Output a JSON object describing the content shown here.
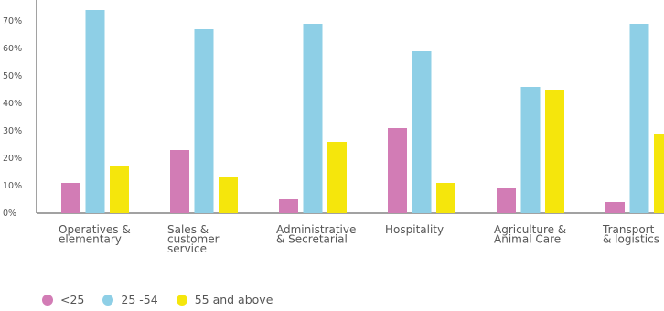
{
  "chart_data": {
    "type": "bar",
    "categories": [
      [
        "Operatives &",
        "elementary"
      ],
      [
        "Sales &",
        "customer",
        "service"
      ],
      [
        "Administrative",
        "& Secretarial"
      ],
      [
        "Hospitality"
      ],
      [
        "Agriculture &",
        "Animal Care"
      ],
      [
        "Transport",
        "& logistics"
      ]
    ],
    "series": [
      {
        "name": "<25",
        "color": "#d27cb5",
        "values": [
          11,
          23,
          5,
          31,
          9,
          4
        ]
      },
      {
        "name": "25 -54",
        "color": "#8ecfe6",
        "values": [
          74,
          67,
          69,
          59,
          46,
          69
        ]
      },
      {
        "name": "55 and above",
        "color": "#f5e60c",
        "values": [
          17,
          13,
          26,
          11,
          45,
          29
        ]
      }
    ],
    "yticks": [
      "0%",
      "10%",
      "20%",
      "30%",
      "40%",
      "50%",
      "60%",
      "70%"
    ],
    "ylim": [
      0,
      75
    ],
    "grid": false,
    "legend_position": "bottom-left"
  }
}
